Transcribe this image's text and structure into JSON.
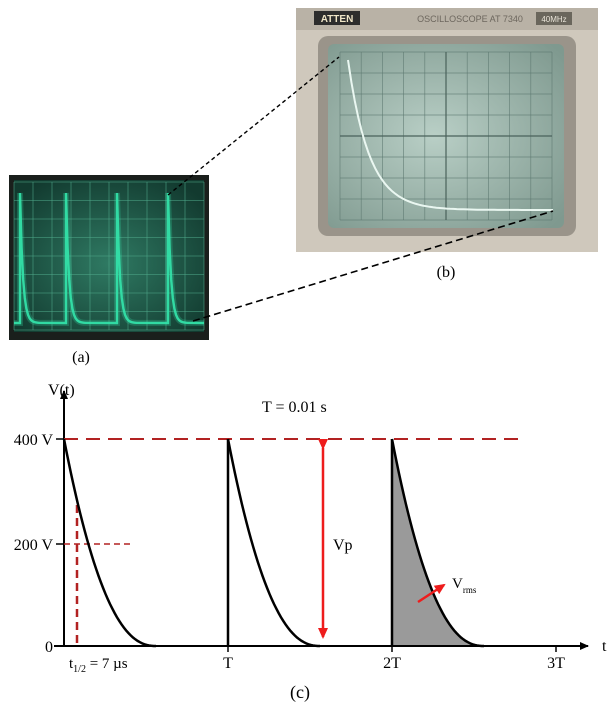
{
  "panel_a": {
    "caption": "(a)"
  },
  "panel_b": {
    "caption": "(b)",
    "brand_text": "ATTEN",
    "model_text": "OSCILLOSCOPE AT 7340",
    "bandwidth_badge": "40MHz"
  },
  "panel_c": {
    "caption": "(c)",
    "y_axis_label": "V(t)",
    "x_axis_label": "t",
    "period_text": "T = 0.01 s",
    "y_ticks": [
      "400 V",
      "200 V",
      "0"
    ],
    "x_ticks": [
      "T",
      "2T",
      "3T"
    ],
    "half_life_label": {
      "base": "t",
      "subscript": "1/2",
      "suffix": " = 7 µs"
    },
    "vp_label": "Vp",
    "vrms_label": {
      "base": "V",
      "subscript": "rms"
    }
  },
  "colors": {
    "phosphor": "#33e0a8",
    "guide_red": "#b22222",
    "arrow_red": "#ee1c1c",
    "shade": "#9a9a9a"
  }
}
